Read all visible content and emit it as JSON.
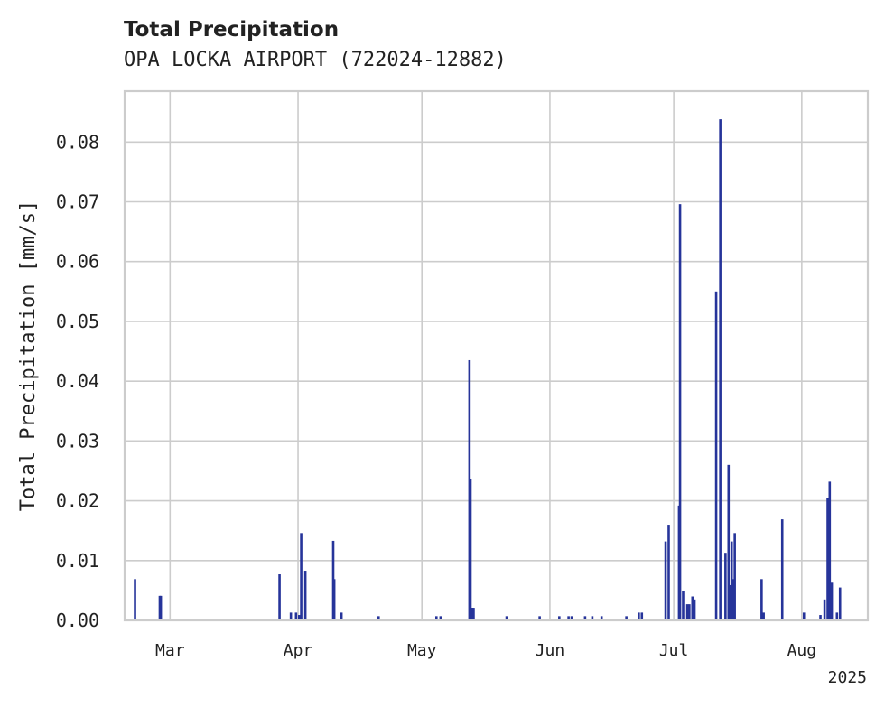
{
  "chart_data": {
    "type": "bar",
    "title": "Total Precipitation",
    "subtitle": "OPA LOCKA AIRPORT (722024-12882)",
    "xlabel": "",
    "ylabel": "Total Precipitation [mm/s]",
    "year_label": "2025",
    "x_tick_labels": [
      "Mar",
      "Apr",
      "May",
      "Jun",
      "Jul",
      "Aug"
    ],
    "x_tick_dates": [
      "2025-03-01",
      "2025-04-01",
      "2025-05-01",
      "2025-06-01",
      "2025-07-01",
      "2025-08-01"
    ],
    "y_tick_labels": [
      "0.00",
      "0.01",
      "0.02",
      "0.03",
      "0.04",
      "0.05",
      "0.06",
      "0.07",
      "0.08"
    ],
    "y_ticks": [
      0,
      0.01,
      0.02,
      0.03,
      0.04,
      0.05,
      0.06,
      0.07,
      0.08
    ],
    "xlim": [
      "2025-02-18",
      "2025-08-17"
    ],
    "ylim": [
      0,
      0.0885
    ],
    "grid": true,
    "color": "#26349a",
    "x": [
      "2025-02-20T12:00",
      "2025-02-26T12:00",
      "2025-02-26T18:00",
      "2025-03-27T12:00",
      "2025-03-30T06:00",
      "2025-03-31T12:00",
      "2025-04-01T06:00",
      "2025-04-01T18:00",
      "2025-04-02T18:00",
      "2025-04-09T12:00",
      "2025-04-09T18:00",
      "2025-04-11T12:00",
      "2025-04-20T12:00",
      "2025-05-04T12:00",
      "2025-05-05T12:00",
      "2025-05-12T12:00",
      "2025-05-12T18:00",
      "2025-05-13T00:00",
      "2025-05-13T06:00",
      "2025-05-13T12:00",
      "2025-05-21T12:00",
      "2025-05-29T12:00",
      "2025-06-03T06:00",
      "2025-06-05T12:00",
      "2025-06-06T06:00",
      "2025-06-09T12:00",
      "2025-06-11T06:00",
      "2025-06-13T12:00",
      "2025-06-19T12:00",
      "2025-06-22T12:00",
      "2025-06-23T06:00",
      "2025-06-29T00:00",
      "2025-06-29T18:00",
      "2025-07-02T06:00",
      "2025-07-02T12:00",
      "2025-07-03T06:00",
      "2025-07-04T06:00",
      "2025-07-04T18:00",
      "2025-07-05T12:00",
      "2025-07-06T00:00",
      "2025-07-11T06:00",
      "2025-07-12T06:00",
      "2025-07-13T12:00",
      "2025-07-14T06:00",
      "2025-07-14T12:00",
      "2025-07-15T00:00",
      "2025-07-15T06:00",
      "2025-07-15T18:00",
      "2025-07-22T06:00",
      "2025-07-22T18:00",
      "2025-07-27T06:00",
      "2025-08-01T12:00",
      "2025-08-05T12:00",
      "2025-08-06T12:00",
      "2025-08-07T06:00",
      "2025-08-07T18:00",
      "2025-08-08T06:00",
      "2025-08-09T12:00",
      "2025-08-10T06:00"
    ],
    "values": [
      0.0069,
      0.0041,
      0.0041,
      0.0077,
      0.0013,
      0.0013,
      0.0009,
      0.0146,
      0.0083,
      0.0133,
      0.0069,
      0.0013,
      0.0007,
      0.0007,
      0.0007,
      0.0435,
      0.0237,
      0.0021,
      0.0021,
      0.0021,
      0.0007,
      0.0007,
      0.0007,
      0.0007,
      0.0007,
      0.0007,
      0.0007,
      0.0007,
      0.0007,
      0.0013,
      0.0013,
      0.0132,
      0.016,
      0.0192,
      0.0696,
      0.0049,
      0.0027,
      0.0027,
      0.004,
      0.0035,
      0.055,
      0.0838,
      0.0113,
      0.026,
      0.0059,
      0.0132,
      0.0069,
      0.0146,
      0.0069,
      0.0013,
      0.0169,
      0.0013,
      0.0009,
      0.0035,
      0.0204,
      0.0232,
      0.0063,
      0.0013,
      0.0055
    ]
  }
}
